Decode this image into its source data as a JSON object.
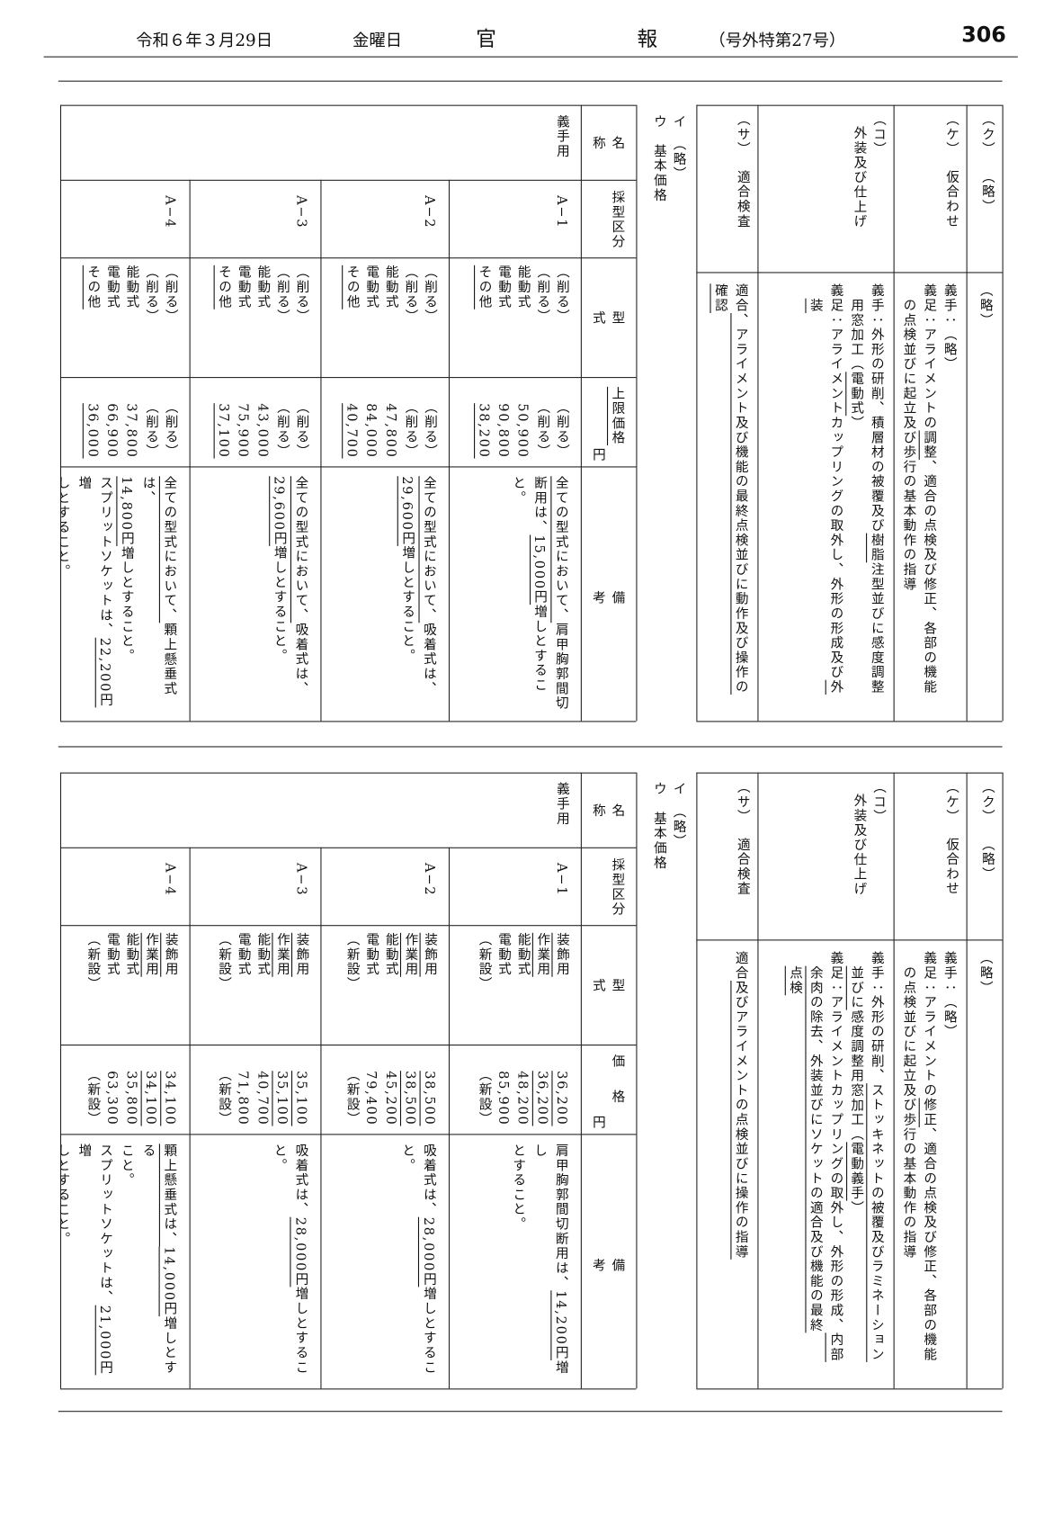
{
  "header": {
    "date": "令和６年３月29日",
    "weekday": "金曜日",
    "title": "官　報",
    "issue": "（号外特第27号）",
    "page": "306"
  },
  "panels": [
    {
      "items": [
        {
          "mark": "（ク）",
          "name": "（略）",
          "lines": [
            [
              "（略）"
            ]
          ]
        },
        {
          "mark": "（ケ）",
          "name": "仮合わせ",
          "lines": [
            [
              "義手：（略）"
            ],
            [
              "義足：アライメントの",
              {
                "text": "調整",
                "underline": true
              },
              "、適合の点検及び修正、各部の機能"
            ],
            [
              "　の点検並びに起立及び歩行の基本動作の指導"
            ]
          ]
        },
        {
          "mark": "（コ）",
          "name": "外装及び仕上げ",
          "lines": [
            [
              "義手：外形の研削、積層材の被覆及び",
              {
                "text": "樹脂",
                "underline": true
              },
              "注型並びに感度調整"
            ],
            [
              "　用窓加工（",
              {
                "text": "電動式",
                "underline": true
              },
              "）"
            ],
            [
              "義足：アライメントカップリングの取外し、外形の形成及び",
              {
                "text": "外",
                "underline": true
              }
            ],
            [
              "　",
              {
                "text": "装",
                "underline": true
              }
            ]
          ]
        },
        {
          "mark": "（サ）",
          "name": "適合検査",
          "lines": [
            [
              "適合",
              {
                "text": "、アライメント及び機能の最終点検並びに動作及び操作の",
                "underline": true
              }
            ],
            [
              {
                "text": "確認",
                "underline": true
              }
            ]
          ]
        }
      ],
      "notes": [
        "イ　（略）",
        "ウ　基本価格"
      ],
      "table": {
        "headers": [
          "名称",
          "採型区分",
          "型式",
          {
            "text": "上限価格",
            "underline": true
          },
          "備考"
        ],
        "unit": "円",
        "name": "義手用",
        "rows": [
          {
            "code": "A−1",
            "types": [
              "（削る）",
              "（削る）",
              "能動式",
              "電動式",
              {
                "text": "その他",
                "underline": true
              }
            ],
            "prices": [
              "（削る）",
              "（削る）",
              "50,900",
              "90,800",
              {
                "text": "38,200",
                "underline": true
              }
            ],
            "remarks": [
              [
                {
                  "text": "全ての型式において、",
                  "underline": true
                },
                "肩甲胸郭間切"
              ],
              [
                "断用は、",
                {
                  "text": "15,000円",
                  "underline": true
                },
                "増しとすること。"
              ]
            ]
          },
          {
            "code": "A−2",
            "types": [
              "（削る）",
              "（削る）",
              "能動式",
              "電動式",
              {
                "text": "その他",
                "underline": true
              }
            ],
            "prices": [
              "（削る）",
              "（削る）",
              "47,800",
              "84,000",
              {
                "text": "40,700",
                "underline": true
              }
            ],
            "remarks": [
              [
                {
                  "text": "全ての型式において、",
                  "underline": true
                },
                "吸着式は、"
              ],
              [
                {
                  "text": "29,600円",
                  "underline": true
                },
                "増しとすること。"
              ]
            ]
          },
          {
            "code": "A−3",
            "types": [
              "（削る）",
              "（削る）",
              "能動式",
              "電動式",
              {
                "text": "その他",
                "underline": true
              }
            ],
            "prices": [
              "（削る）",
              "（削る）",
              "43,000",
              "75,900",
              {
                "text": "37,100",
                "underline": true
              }
            ],
            "remarks": [
              [
                {
                  "text": "全ての型式において、",
                  "underline": true
                },
                "吸着式は、"
              ],
              [
                {
                  "text": "29,600円",
                  "underline": true
                },
                "増しとすること。"
              ]
            ]
          },
          {
            "code": "A−4",
            "types": [
              "（削る）",
              "（削る）",
              "能動式",
              "電動式",
              {
                "text": "その他",
                "underline": true
              }
            ],
            "prices": [
              "（削る）",
              "（削る）",
              "37,800",
              "66,900",
              {
                "text": "36,000",
                "underline": true
              }
            ],
            "remarks": [
              [
                {
                  "text": "全ての型式において、",
                  "underline": true
                },
                "顆上懸垂式は、"
              ],
              [
                {
                  "text": "14,800円",
                  "underline": true
                },
                "増しとすること。"
              ],
              [
                "スプリットソケットは、",
                {
                  "text": "22,200円",
                  "underline": true
                },
                "増"
              ],
              [
                "しとすること。"
              ]
            ]
          }
        ]
      }
    },
    {
      "items": [
        {
          "mark": "（ク）",
          "name": "（略）",
          "lines": [
            [
              "（略）"
            ]
          ]
        },
        {
          "mark": "（ケ）",
          "name": "仮合わせ",
          "lines": [
            [
              "義手：（略）"
            ],
            [
              "義足：アライメントの",
              {
                "text": "修正",
                "underline": true
              },
              "、適合の点検及び修正、各部の機能"
            ],
            [
              "　の点検並びに起立及び歩行の基本動作の指導"
            ]
          ]
        },
        {
          "mark": "（コ）",
          "name": "外装及び仕上げ",
          "lines": [
            [
              "義手：外形の研削、",
              {
                "text": "ストッキネットの被覆及びラミネーション",
                "underline": true
              }
            ],
            [
              "　",
              {
                "text": "並びに",
                "underline": true
              },
              "感度調整用窓加工（",
              {
                "text": "電動義手",
                "underline": true
              },
              "）"
            ],
            [
              "義足：アライメントカップリングの取外し、外形の形成、",
              {
                "text": "内部",
                "underline": true
              }
            ],
            [
              "　",
              {
                "text": "余肉の除去、外装並びにソケットの適合及び機能の最終",
                "underline": true
              }
            ],
            [
              "　",
              {
                "text": "点検",
                "underline": true
              }
            ]
          ]
        },
        {
          "mark": "（サ）",
          "name": "適合検査",
          "lines": [
            [
              "適合",
              {
                "text": "及びアライメントの点検並びに操作の指導",
                "underline": true
              }
            ]
          ]
        }
      ],
      "notes": [
        "イ　（略）",
        "ウ　基本価格"
      ],
      "table": {
        "headers": [
          "名称",
          "採型区分",
          "型式",
          "価格",
          "備考"
        ],
        "unit": "円",
        "name": "義手用",
        "rows": [
          {
            "code": "A−1",
            "types": [
              {
                "text": "装飾用",
                "underline": true
              },
              {
                "text": "作業用",
                "underline": true
              },
              "能動式",
              "電動式",
              "（新設）"
            ],
            "prices": [
              {
                "text": "36,200",
                "underline": true
              },
              {
                "text": "36,200",
                "underline": true
              },
              "48,200",
              "85,900",
              "（新設）"
            ],
            "remarks": [
              [
                "肩甲胸郭間切断用は、",
                {
                  "text": "14,200円",
                  "underline": true
                },
                "増し"
              ],
              [
                "とすること。"
              ]
            ]
          },
          {
            "code": "A−2",
            "types": [
              {
                "text": "装飾用",
                "underline": true
              },
              {
                "text": "作業用",
                "underline": true
              },
              "能動式",
              "電動式",
              "（新設）"
            ],
            "prices": [
              {
                "text": "38,500",
                "underline": true
              },
              {
                "text": "38,500",
                "underline": true
              },
              "45,200",
              "79,400",
              "（新設）"
            ],
            "remarks": [
              [
                "吸着式は、",
                {
                  "text": "28,000円",
                  "underline": true
                },
                "増しとすること。"
              ]
            ]
          },
          {
            "code": "A−3",
            "types": [
              {
                "text": "装飾用",
                "underline": true
              },
              {
                "text": "作業用",
                "underline": true
              },
              "能動式",
              "電動式",
              "（新設）"
            ],
            "prices": [
              {
                "text": "35,100",
                "underline": true
              },
              {
                "text": "35,100",
                "underline": true
              },
              "40,700",
              "71,800",
              "（新設）"
            ],
            "remarks": [
              [
                "吸着式は、",
                {
                  "text": "28,000円",
                  "underline": true
                },
                "増しとすること。"
              ]
            ]
          },
          {
            "code": "A−4",
            "types": [
              {
                "text": "装飾用",
                "underline": true
              },
              {
                "text": "作業用",
                "underline": true
              },
              "能動式",
              "電動式",
              "（新設）"
            ],
            "prices": [
              {
                "text": "34,100",
                "underline": true
              },
              {
                "text": "34,100",
                "underline": true
              },
              "35,800",
              "63,300",
              "（新設）"
            ],
            "remarks": [
              [
                {
                  "text": "顆上懸垂式は、",
                  "underline": true
                },
                {
                  "text": "14,000円",
                  "underline": true
                },
                "増しとする"
              ],
              [
                "こと。"
              ],
              [
                "スプリットソケットは、",
                {
                  "text": "21,000円",
                  "underline": true
                },
                "増"
              ],
              [
                "しとすること。"
              ]
            ]
          }
        ]
      }
    }
  ]
}
